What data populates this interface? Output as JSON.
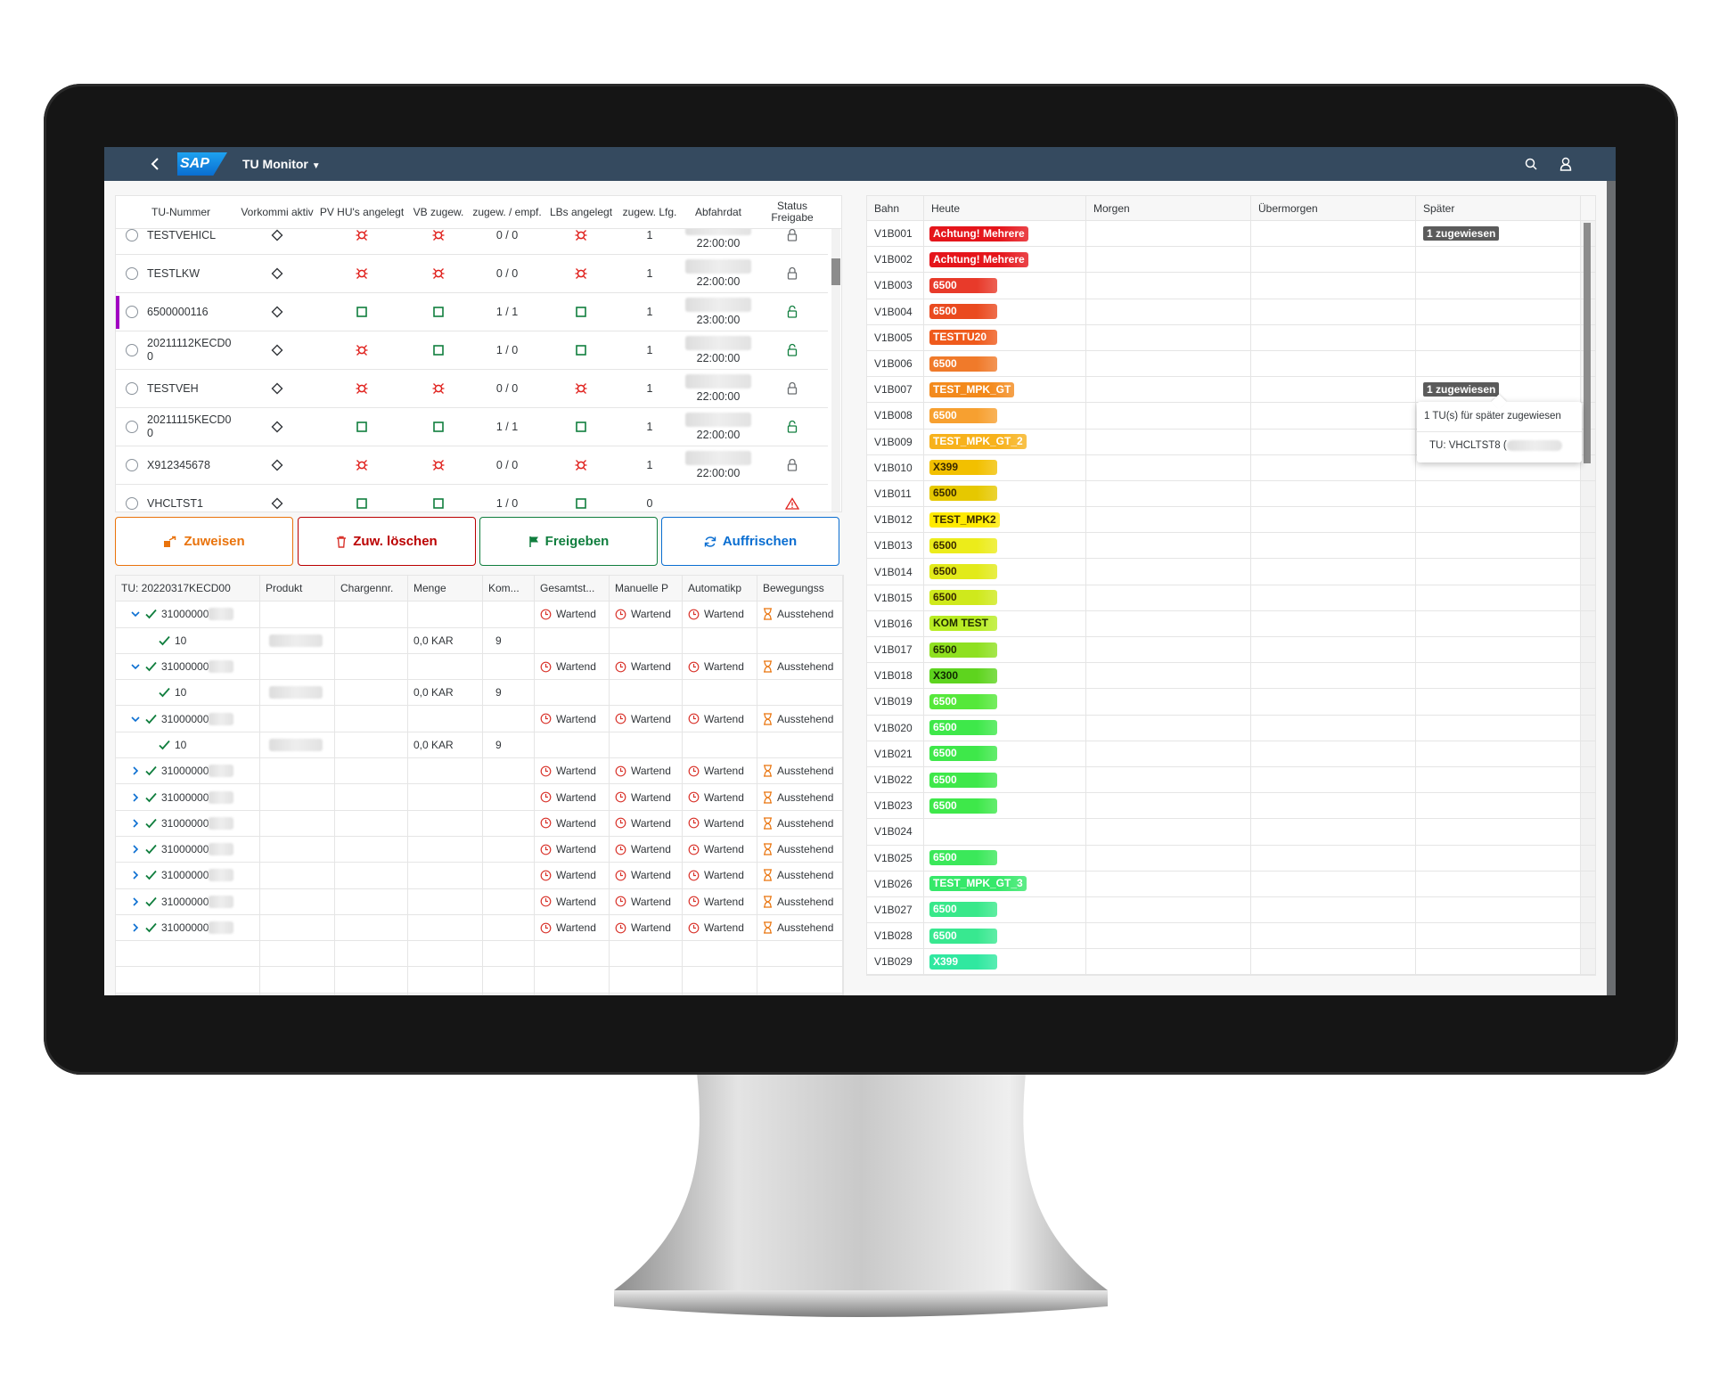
{
  "shell": {
    "logo": "SAP",
    "title": "TU Monitor"
  },
  "tu_table": {
    "columns": [
      "TU-Nummer",
      "Vorkommi aktiv",
      "PV HU's angelegt",
      "VB zugew.",
      "zugew. / empf.",
      "LBs angelegt",
      "zugew. Lfg.",
      "Abfahrdat",
      "Status Freigabe"
    ],
    "rows": [
      {
        "tu": "TESTVEHICL",
        "assigned": "0 / 0",
        "deliveries": "1",
        "departure": "22:00:00"
      },
      {
        "tu": "TESTLKW",
        "assigned": "0 / 0",
        "deliveries": "1",
        "departure": "22:00:00"
      },
      {
        "tu": "6500000116",
        "assigned": "1 / 1",
        "deliveries": "1",
        "departure": "23:00:00"
      },
      {
        "tu": "20211112KECD00",
        "assigned": "1 / 0",
        "deliveries": "1",
        "departure": "22:00:00"
      },
      {
        "tu": "TESTVEH",
        "assigned": "0 / 0",
        "deliveries": "1",
        "departure": "22:00:00"
      },
      {
        "tu": "20211115KECD00",
        "assigned": "1 / 1",
        "deliveries": "1",
        "departure": "22:00:00"
      },
      {
        "tu": "X912345678",
        "assigned": "0 / 0",
        "deliveries": "1",
        "departure": "22:00:00"
      },
      {
        "tu": "VHCLTST1",
        "assigned": "1 / 0",
        "deliveries": "0"
      }
    ]
  },
  "actions": [
    "Zuweisen",
    "Zuw. löschen",
    "Freigeben",
    "Auffrischen"
  ],
  "detail_table": {
    "title": "TU: 20220317KECD00",
    "columns": [
      "Produkt",
      "Chargennr.",
      "Menge",
      "Kom...",
      "Gesamtst...",
      "Manuelle P",
      "Automatikp",
      "Bewegungss"
    ],
    "rows": [
      {
        "item": "31000000",
        "status": [
          "Wartend",
          "Wartend",
          "Wartend",
          "Ausstehend"
        ]
      },
      {
        "item": "10",
        "quantity": "0,0 KAR",
        "kom": "9"
      },
      {
        "item": "31000000",
        "status": [
          "Wartend",
          "Wartend",
          "Wartend",
          "Ausstehend"
        ]
      },
      {
        "item": "10",
        "quantity": "0,0 KAR",
        "kom": "9"
      },
      {
        "item": "31000000",
        "status": [
          "Wartend",
          "Wartend",
          "Wartend",
          "Ausstehend"
        ]
      },
      {
        "item": "10",
        "quantity": "0,0 KAR",
        "kom": "9"
      },
      {
        "item": "31000000",
        "status": [
          "Wartend",
          "Wartend",
          "Wartend",
          "Ausstehend"
        ]
      },
      {
        "item": "31000000",
        "status": [
          "Wartend",
          "Wartend",
          "Wartend",
          "Ausstehend"
        ]
      },
      {
        "item": "31000000",
        "status": [
          "Wartend",
          "Wartend",
          "Wartend",
          "Ausstehend"
        ]
      },
      {
        "item": "31000000",
        "status": [
          "Wartend",
          "Wartend",
          "Wartend",
          "Ausstehend"
        ]
      },
      {
        "item": "31000000",
        "status": [
          "Wartend",
          "Wartend",
          "Wartend",
          "Ausstehend"
        ]
      },
      {
        "item": "31000000",
        "status": [
          "Wartend",
          "Wartend",
          "Wartend",
          "Ausstehend"
        ]
      },
      {
        "item": "31000000",
        "status": [
          "Wartend",
          "Wartend",
          "Wartend",
          "Ausstehend"
        ]
      }
    ]
  },
  "lane_table": {
    "columns": [
      "Bahn",
      "Heute",
      "Morgen",
      "Übermorgen",
      "Später"
    ],
    "rows": [
      {
        "lane": "V1B001",
        "today": "Achtung! Mehrere",
        "color": "#e5151b",
        "text_color": "#ffffff",
        "later": "1 zugewiesen"
      },
      {
        "lane": "V1B002",
        "today": "Achtung! Mehrere",
        "color": "#e5151b",
        "text_color": "#ffffff"
      },
      {
        "lane": "V1B003",
        "today": "6500",
        "color": "#e83a2a",
        "text_color": "#ffffff"
      },
      {
        "lane": "V1B004",
        "today": "6500",
        "color": "#ea4a1f",
        "text_color": "#ffffff"
      },
      {
        "lane": "V1B005",
        "today": "TESTTU20",
        "color": "#ef5a1c",
        "text_color": "#ffffff"
      },
      {
        "lane": "V1B006",
        "today": "6500",
        "color": "#f07a2a",
        "text_color": "#ffffff"
      },
      {
        "lane": "V1B007",
        "today": "TEST_MPK_GT",
        "color": "#f38a1c",
        "text_color": "#ffffff",
        "later": "1 zugewiesen"
      },
      {
        "lane": "V1B008",
        "today": "6500",
        "color": "#f7a030",
        "text_color": "#ffffff"
      },
      {
        "lane": "V1B009",
        "today": "TEST_MPK_GT_2",
        "color": "#f7b21c",
        "text_color": "#ffffff"
      },
      {
        "lane": "V1B010",
        "today": "X399",
        "color": "#f2c000",
        "text_color": "#3a2a00"
      },
      {
        "lane": "V1B011",
        "today": "6500",
        "color": "#e6c800",
        "text_color": "#3a2a00"
      },
      {
        "lane": "V1B012",
        "today": "TEST_MPK2",
        "color": "#ffea00",
        "text_color": "#3a2a00"
      },
      {
        "lane": "V1B013",
        "today": "6500",
        "color": "#ecec1a",
        "text_color": "#3a2a00"
      },
      {
        "lane": "V1B014",
        "today": "6500",
        "color": "#e2ea1a",
        "text_color": "#3a2a00"
      },
      {
        "lane": "V1B015",
        "today": "6500",
        "color": "#cfe91c",
        "text_color": "#3a2a00"
      },
      {
        "lane": "V1B016",
        "today": "KOM TEST",
        "color": "#b8ec24",
        "text_color": "#1f2a00"
      },
      {
        "lane": "V1B017",
        "today": "6500",
        "color": "#8fe020",
        "text_color": "#1f2a00"
      },
      {
        "lane": "V1B018",
        "today": "X300",
        "color": "#5ed41e",
        "text_color": "#102a00"
      },
      {
        "lane": "V1B019",
        "today": "6500",
        "color": "#55e83a",
        "text_color": "#ffffff"
      },
      {
        "lane": "V1B020",
        "today": "6500",
        "color": "#3ee84a",
        "text_color": "#ffffff"
      },
      {
        "lane": "V1B021",
        "today": "6500",
        "color": "#3ee84a",
        "text_color": "#ffffff"
      },
      {
        "lane": "V1B022",
        "today": "6500",
        "color": "#3ee84a",
        "text_color": "#ffffff"
      },
      {
        "lane": "V1B023",
        "today": "6500",
        "color": "#3ee84a",
        "text_color": "#ffffff"
      },
      {
        "lane": "V1B024"
      },
      {
        "lane": "V1B025",
        "today": "6500",
        "color": "#3be85a",
        "text_color": "#ffffff"
      },
      {
        "lane": "V1B026",
        "today": "TEST_MPK_GT_3",
        "color": "#36e86a",
        "text_color": "#ffffff"
      },
      {
        "lane": "V1B027",
        "today": "6500",
        "color": "#38e88a",
        "text_color": "#ffffff"
      },
      {
        "lane": "V1B028",
        "today": "6500",
        "color": "#38e890",
        "text_color": "#ffffff"
      },
      {
        "lane": "V1B029",
        "today": "X399",
        "color": "#30e8a0",
        "text_color": "#ffffff"
      }
    ]
  },
  "popover": {
    "message": "1 TU(s) für später zugewiesen",
    "tu": "TU: VHCLTST8 ("
  }
}
